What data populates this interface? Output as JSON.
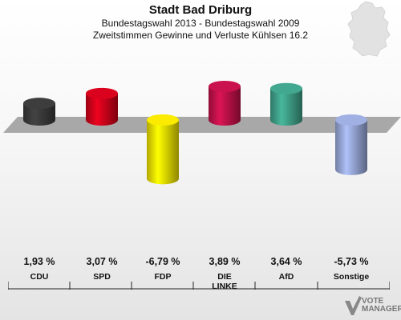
{
  "title": "Stadt Bad Driburg",
  "subtitle1": "Bundestagswahl 2013 - Bundestagswahl 2009",
  "subtitle2": "Zweitstimmen Gewinne und Verluste Kühlsen 16.2",
  "watermark": {
    "line1": "VOTE",
    "line2": "MANAGER"
  },
  "chart_data": {
    "type": "bar",
    "categories": [
      "CDU",
      "SPD",
      "FDP",
      "DIE LINKE",
      "AfD",
      "Sonstige"
    ],
    "values": [
      1.93,
      3.07,
      -6.79,
      3.89,
      3.64,
      -5.73
    ],
    "value_labels": [
      "1,93 %",
      "3,07 %",
      "-6,79 %",
      "3,89 %",
      "3,64 %",
      "-5,73 %"
    ],
    "colors": [
      "#3a3a3a",
      "#d0021b",
      "#eee000",
      "#c0114a",
      "#3fa088",
      "#98a8d8"
    ],
    "unit": "%",
    "grid": false,
    "legend": "none"
  }
}
